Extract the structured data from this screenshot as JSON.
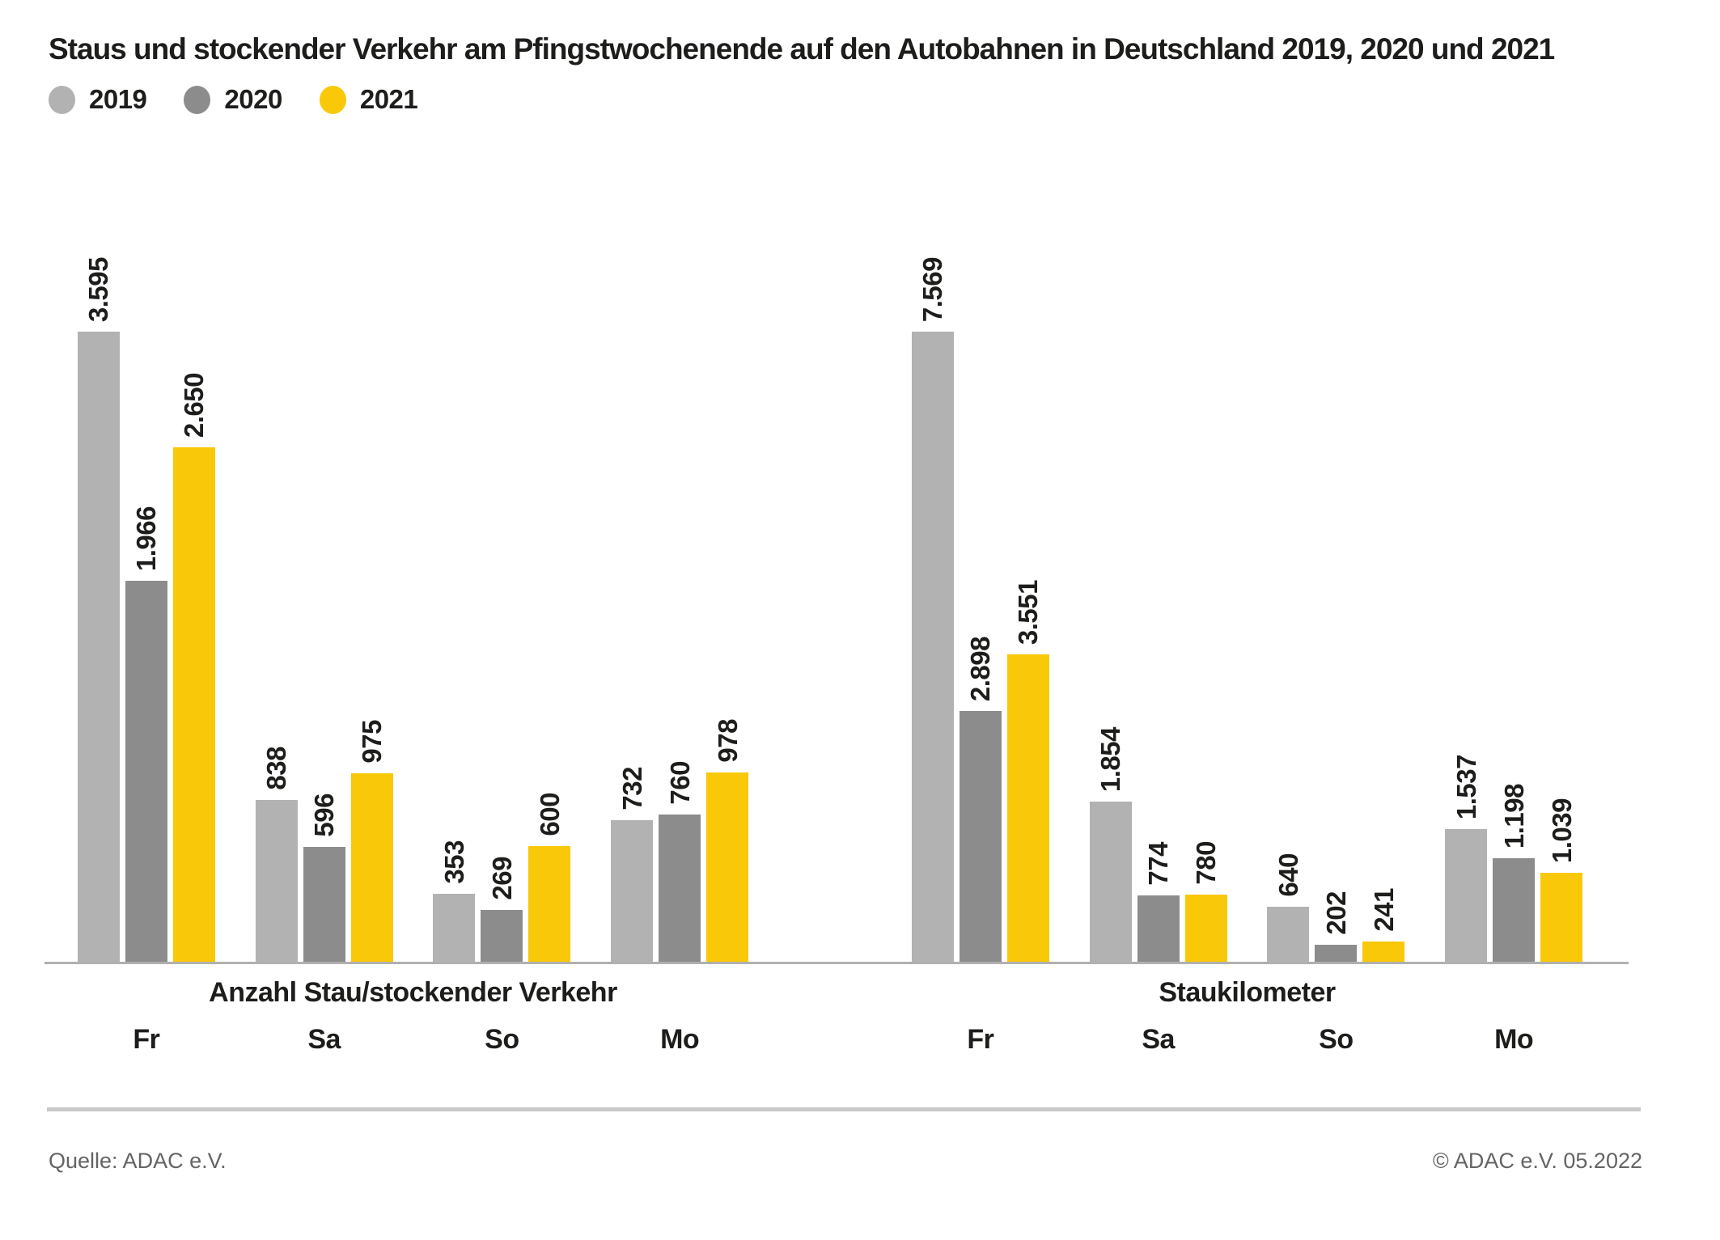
{
  "title": "Staus und stockender Verkehr am Pfingstwochenende auf den Autobahnen in Deutschland 2019, 2020 und 2021",
  "legend": [
    {
      "label": "2019",
      "color": "#b2b2b2"
    },
    {
      "label": "2020",
      "color": "#8c8c8c"
    },
    {
      "label": "2021",
      "color": "#f9c808"
    }
  ],
  "colors": {
    "series_2019": "#b2b2b2",
    "series_2020": "#8c8c8c",
    "series_2021": "#f9c808",
    "text": "#1d1d1b",
    "footer_text": "#646464",
    "axis_line": "#b0b0b0"
  },
  "footer": {
    "source": "Quelle: ADAC e.V.",
    "copyright": "© ADAC e.V. 05.2022"
  },
  "chart_data": [
    {
      "type": "bar",
      "title": "Anzahl Stau/stockender Verkehr",
      "categories": [
        "Fr",
        "Sa",
        "So",
        "Mo"
      ],
      "series": [
        {
          "name": "2019",
          "color": "#b2b2b2",
          "values": [
            3595,
            838,
            353,
            732
          ],
          "labels": [
            "3.595",
            "838",
            "353",
            "732"
          ]
        },
        {
          "name": "2020",
          "color": "#8c8c8c",
          "values": [
            1966,
            596,
            269,
            760
          ],
          "labels": [
            "1.966",
            "596",
            "269",
            "760"
          ]
        },
        {
          "name": "2021",
          "color": "#f9c808",
          "values": [
            2650,
            975,
            600,
            978
          ],
          "labels": [
            "2.650",
            "975",
            "600",
            "978"
          ]
        }
      ],
      "legend_position": "top-left",
      "grid": false,
      "value_labels": "rotated-90-above-bars"
    },
    {
      "type": "bar",
      "title": "Staukilometer",
      "categories": [
        "Fr",
        "Sa",
        "So",
        "Mo"
      ],
      "series": [
        {
          "name": "2019",
          "color": "#b2b2b2",
          "values": [
            7569,
            1854,
            640,
            1537
          ],
          "labels": [
            "7.569",
            "1.854",
            "640",
            "1.537"
          ]
        },
        {
          "name": "2020",
          "color": "#8c8c8c",
          "values": [
            2898,
            774,
            202,
            1198
          ],
          "labels": [
            "2.898",
            "774",
            "202",
            "1.198"
          ]
        },
        {
          "name": "2021",
          "color": "#f9c808",
          "values": [
            3551,
            780,
            241,
            1039
          ],
          "labels": [
            "3.551",
            "780",
            "241",
            "1.039"
          ]
        }
      ],
      "legend_position": "top-left",
      "grid": false,
      "value_labels": "rotated-90-above-bars"
    }
  ]
}
